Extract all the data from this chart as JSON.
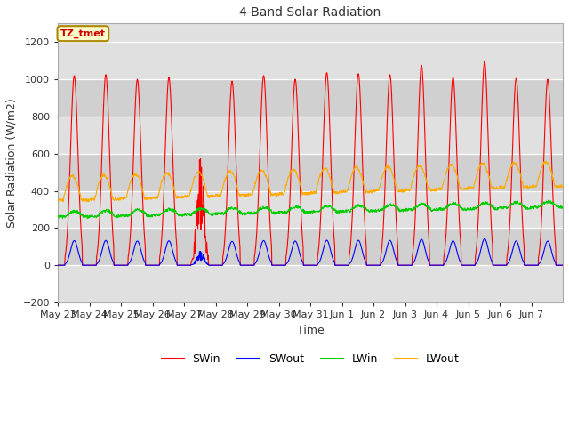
{
  "title": "4-Band Solar Radiation",
  "xlabel": "Time",
  "ylabel": "Solar Radiation (W/m2)",
  "ylim": [
    -200,
    1300
  ],
  "yticks": [
    -200,
    0,
    200,
    400,
    600,
    800,
    1000,
    1200
  ],
  "x_labels": [
    "May 23",
    "May 24",
    "May 25",
    "May 26",
    "May 27",
    "May 28",
    "May 29",
    "May 30",
    "May 31",
    "Jun 1",
    "Jun 2",
    "Jun 3",
    "Jun 4",
    "Jun 5",
    "Jun 6",
    "Jun 7"
  ],
  "legend_labels": [
    "SWin",
    "SWout",
    "LWin",
    "LWout"
  ],
  "legend_colors": [
    "#ff0000",
    "#0000ff",
    "#00cc00",
    "#ffaa00"
  ],
  "box_label": "TZ_tmet",
  "box_facecolor": "#ffffcc",
  "box_edgecolor": "#aa8800",
  "box_textcolor": "#cc0000",
  "color_SWin": "#ff0000",
  "color_SWout": "#0000ff",
  "color_LWin": "#00cc00",
  "color_LWout": "#ffaa00",
  "bg_color": "#ffffff",
  "plot_bg_color": "#e0e0e0",
  "grid_color": "#ffffff",
  "alt_band_color": "#d0d0d0",
  "n_days": 16,
  "swin_peaks": [
    1020,
    1025,
    1000,
    1010,
    0,
    990,
    1020,
    1000,
    1035,
    1030,
    1025,
    1075,
    1010,
    1095,
    1005,
    1000
  ],
  "swin_peak_cloudy": 590
}
